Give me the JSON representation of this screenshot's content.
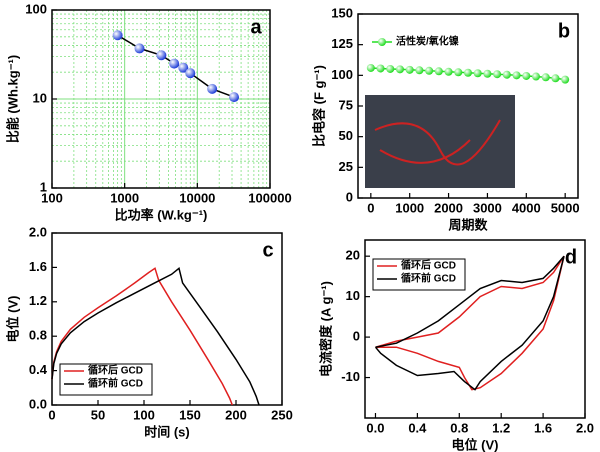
{
  "chart_data": [
    {
      "type": "line",
      "panel_label": "a",
      "x_label": "比功率 (W.kg⁻¹)",
      "y_label": "比能 (Wh.kg⁻¹)",
      "xscale": "log",
      "yscale": "log",
      "grid": true,
      "color": "#1f3fd8",
      "line_color": "#000000",
      "grid_color": "#7fe07f",
      "x": [
        800,
        1600,
        3200,
        4800,
        6400,
        8000,
        16000,
        32000
      ],
      "values": [
        52,
        37,
        31,
        25,
        22.5,
        19.5,
        13,
        10.5
      ],
      "xlim": [
        100,
        100000
      ],
      "xticks": [
        100,
        1000,
        10000,
        100000
      ],
      "ylim": [
        1,
        100
      ],
      "yticks": [
        1,
        10,
        100
      ]
    },
    {
      "type": "line",
      "panel_label": "b",
      "x_label": "周期数",
      "y_label": "比电容 (F g⁻¹)",
      "legend": "top-left",
      "x": [
        0,
        250,
        500,
        750,
        1000,
        1250,
        1500,
        1750,
        2000,
        2250,
        2500,
        2750,
        3000,
        3250,
        3500,
        3750,
        4000,
        4250,
        4500,
        4750,
        5000
      ],
      "series": [
        {
          "name": "活性炭/氧化镍",
          "color": "#22dd22",
          "values": [
            106,
            105.6,
            105.2,
            104.9,
            104.5,
            104.1,
            103.7,
            103.3,
            102.9,
            102.5,
            102.1,
            101.7,
            101.3,
            100.9,
            100.5,
            100,
            99.5,
            99,
            98.4,
            97.6,
            96.5
          ]
        }
      ],
      "xlim": [
        -330,
        5330
      ],
      "xticks": [
        0,
        1000,
        2000,
        3000,
        4000,
        5000
      ],
      "ylim": [
        0,
        150
      ],
      "yticks": [
        0,
        25,
        50,
        75,
        100,
        125,
        150
      ]
    },
    {
      "type": "line",
      "panel_label": "c",
      "x_label": "时间 (s)",
      "y_label": "电位 (V)",
      "legend": "bottom-left",
      "series": [
        {
          "name": "循环后 GCD",
          "color": "#e02020",
          "x": [
            0,
            2,
            5,
            10,
            20,
            35,
            50,
            70,
            90,
            105,
            112,
            116,
            130,
            150,
            170,
            185,
            193,
            196
          ],
          "values": [
            0.3,
            0.5,
            0.62,
            0.74,
            0.88,
            1.02,
            1.13,
            1.27,
            1.42,
            1.54,
            1.59,
            1.45,
            1.2,
            0.87,
            0.52,
            0.25,
            0.08,
            0
          ]
        },
        {
          "name": "循环前 GCD",
          "color": "#000000",
          "x": [
            0,
            2,
            5,
            10,
            20,
            35,
            50,
            70,
            90,
            110,
            130,
            138,
            142,
            160,
            180,
            200,
            215,
            222,
            225
          ],
          "values": [
            0.3,
            0.48,
            0.6,
            0.71,
            0.84,
            0.97,
            1.07,
            1.19,
            1.3,
            1.41,
            1.52,
            1.59,
            1.42,
            1.15,
            0.85,
            0.53,
            0.27,
            0.1,
            0
          ]
        }
      ],
      "xlim": [
        0,
        250
      ],
      "xticks": [
        0,
        50,
        100,
        150,
        200,
        250
      ],
      "ylim": [
        0,
        2.0
      ],
      "yticks": [
        {
          "value": 0,
          "label": "0.0"
        },
        0.4,
        0.8,
        1.2,
        1.6,
        {
          "value": 2,
          "label": "2.0"
        }
      ]
    },
    {
      "type": "line",
      "panel_label": "d",
      "x_label": "电位 (V)",
      "y_label": "电流密度 (A g⁻¹)",
      "legend": "top-left",
      "series": [
        {
          "name": "循环后 GCD",
          "color": "#e02020",
          "x": [
            0,
            0.2,
            0.4,
            0.6,
            0.8,
            1.0,
            1.2,
            1.4,
            1.6,
            1.7,
            1.8,
            1.7,
            1.6,
            1.4,
            1.2,
            1.0,
            0.92,
            0.85,
            0.8,
            0.6,
            0.4,
            0.2,
            0
          ],
          "values": [
            -2.5,
            -1,
            0,
            1,
            5,
            10,
            12.5,
            12,
            13.5,
            16,
            20,
            9,
            2,
            -4,
            -9,
            -12.5,
            -13,
            -10,
            -7.5,
            -6,
            -4,
            -2.5,
            -2.5
          ]
        },
        {
          "name": "循环前 GCD",
          "color": "#000000",
          "x": [
            0,
            0.2,
            0.4,
            0.6,
            0.8,
            1.0,
            1.2,
            1.4,
            1.6,
            1.7,
            1.8,
            1.7,
            1.6,
            1.4,
            1.2,
            1.0,
            0.95,
            0.85,
            0.75,
            0.6,
            0.4,
            0.2,
            0.05,
            0
          ],
          "values": [
            -2.5,
            -1.5,
            1,
            4,
            8,
            12,
            14,
            13.5,
            14.5,
            17,
            20,
            10,
            4,
            -2,
            -6,
            -11,
            -13,
            -11,
            -8.5,
            -9,
            -9.5,
            -7,
            -4,
            -2.5
          ]
        }
      ],
      "xlim": [
        -0.1,
        2.0
      ],
      "xticks": [
        {
          "value": 0,
          "label": "0.0"
        },
        0.4,
        0.8,
        1.2,
        1.6,
        {
          "value": 2,
          "label": "2.0"
        }
      ],
      "ylim": [
        -20,
        24
      ],
      "yticks": [
        -10,
        0,
        10,
        20
      ]
    }
  ]
}
